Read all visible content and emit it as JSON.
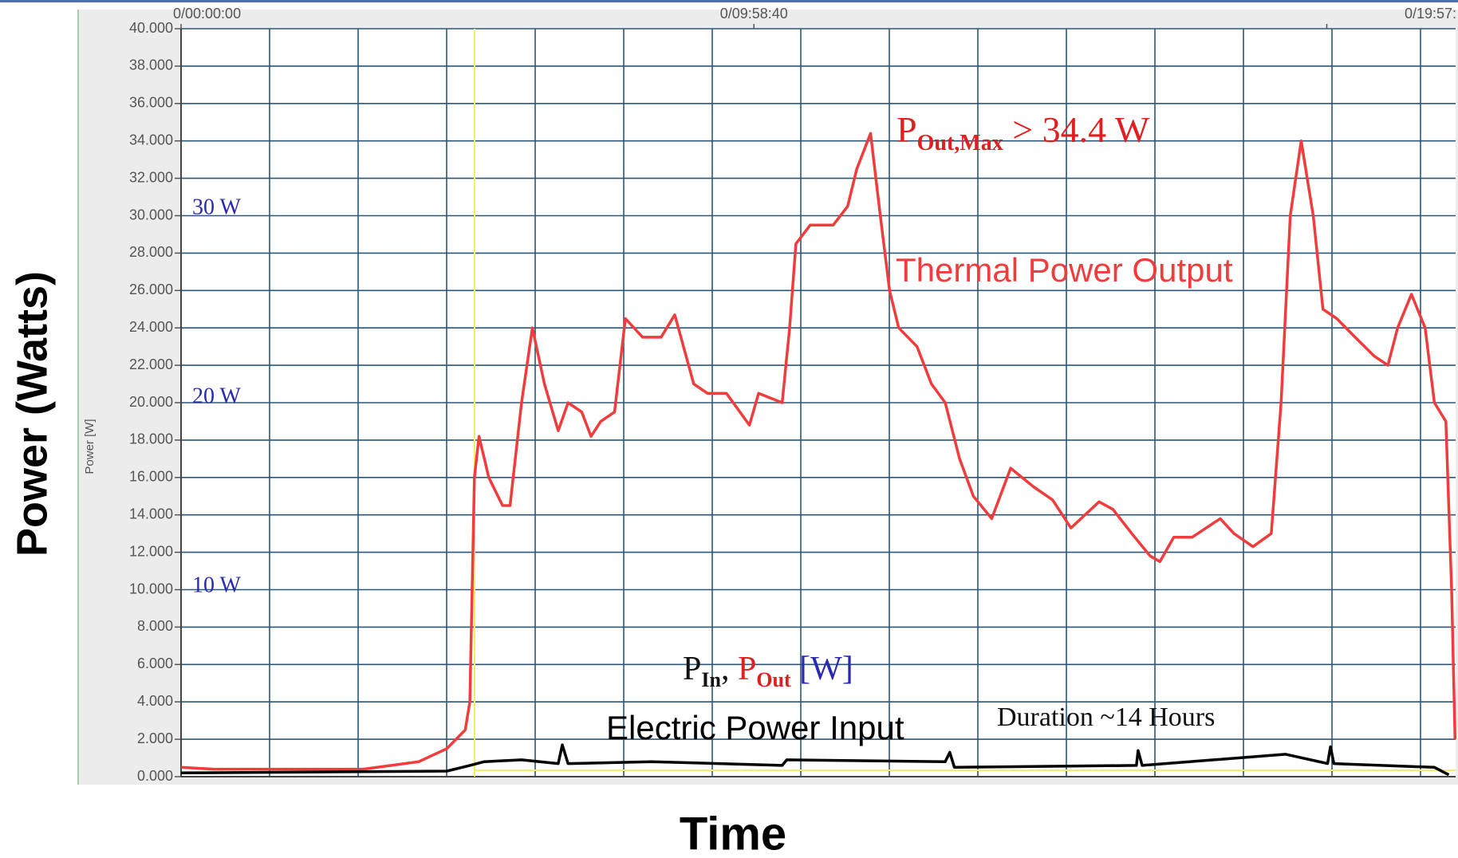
{
  "chart_data": {
    "type": "line",
    "title": "Power (Watts)",
    "x_label": "Time",
    "inner_y_label": "Power [W]",
    "xlim": [
      0,
      22.2
    ],
    "xticks": [
      {
        "value": 0,
        "label": "0/00:00:00"
      },
      {
        "value": 9.978,
        "label": "0/09:58:40"
      },
      {
        "value": 19.956,
        "label": "0/19:57:"
      }
    ],
    "ylim": [
      0,
      40
    ],
    "yticks": [
      {
        "value": 0,
        "label": "0.000"
      },
      {
        "value": 2,
        "label": "2.000"
      },
      {
        "value": 4,
        "label": "4.000"
      },
      {
        "value": 6,
        "label": "6.000"
      },
      {
        "value": 8,
        "label": "8.000"
      },
      {
        "value": 10,
        "label": "10.000"
      },
      {
        "value": 12,
        "label": "12.000"
      },
      {
        "value": 14,
        "label": "14.000"
      },
      {
        "value": 16,
        "label": "16.000"
      },
      {
        "value": 18,
        "label": "18.000"
      },
      {
        "value": 20,
        "label": "20.000"
      },
      {
        "value": 22,
        "label": "22.000"
      },
      {
        "value": 24,
        "label": "24.000"
      },
      {
        "value": 26,
        "label": "26.000"
      },
      {
        "value": 28,
        "label": "28.000"
      },
      {
        "value": 30,
        "label": "30.000"
      },
      {
        "value": 32,
        "label": "32.000"
      },
      {
        "value": 34,
        "label": "34.000"
      },
      {
        "value": 36,
        "label": "36.000"
      },
      {
        "value": 38,
        "label": "38.000"
      },
      {
        "value": 40,
        "label": "40.000"
      }
    ],
    "grid": true,
    "series": [
      {
        "name": "Thermal Power Output",
        "color": "#f03c3c",
        "x": [
          0,
          0.57,
          3.17,
          4.14,
          4.63,
          4.95,
          5.03,
          5.11,
          5.19,
          5.36,
          5.6,
          5.73,
          5.93,
          6.12,
          6.33,
          6.57,
          6.74,
          6.98,
          7.14,
          7.31,
          7.55,
          7.74,
          8.04,
          8.36,
          8.6,
          8.93,
          9.17,
          9.5,
          9.9,
          10.06,
          10.47,
          10.6,
          10.71,
          10.96,
          11.36,
          11.61,
          11.77,
          12.01,
          12.18,
          12.34,
          12.5,
          12.82,
          13.07,
          13.31,
          13.56,
          13.8,
          14.12,
          14.45,
          14.85,
          15.18,
          15.5,
          15.99,
          16.23,
          16.56,
          16.88,
          17.05,
          17.29,
          17.61,
          18.1,
          18.34,
          18.67,
          18.99,
          19.16,
          19.32,
          19.51,
          19.72,
          19.89,
          20.13,
          20.45,
          20.78,
          21.02,
          21.19,
          21.43,
          21.67,
          21.83,
          22.03,
          22.13,
          22.19
        ],
        "values": [
          0.5,
          0.4,
          0.4,
          0.8,
          1.5,
          2.5,
          4,
          16,
          18.2,
          16,
          14.5,
          14.5,
          20,
          24,
          21,
          18.5,
          20,
          19.5,
          18.2,
          19,
          19.5,
          24.5,
          23.5,
          23.5,
          24.7,
          21,
          20.5,
          20.5,
          18.8,
          20.5,
          20,
          24,
          28.5,
          29.5,
          29.5,
          30.5,
          32.5,
          34.4,
          30,
          26,
          24,
          23,
          21,
          20,
          17,
          15,
          13.8,
          16.5,
          15.5,
          14.8,
          13.3,
          14.7,
          14.3,
          13,
          11.8,
          11.5,
          12.8,
          12.8,
          13.8,
          13,
          12.3,
          13,
          20,
          30,
          34,
          30,
          25,
          24.5,
          23.5,
          22.5,
          22,
          24,
          25.8,
          24,
          20,
          19,
          10,
          2
        ]
      },
      {
        "name": "Electric Power Input",
        "color": "#000000",
        "x": [
          0,
          4.63,
          5.03,
          5.28,
          5.93,
          6.57,
          6.64,
          6.74,
          8.2,
          10.47,
          10.55,
          13.31,
          13.39,
          13.47,
          16.64,
          16.67,
          16.74,
          19.24,
          19.97,
          20.02,
          20.08,
          21.83,
          22.08
        ],
        "values": [
          0.2,
          0.3,
          0.6,
          0.8,
          0.9,
          0.7,
          1.7,
          0.7,
          0.8,
          0.6,
          0.9,
          0.8,
          1.3,
          0.5,
          0.6,
          1.4,
          0.6,
          1.2,
          0.7,
          1.6,
          0.7,
          0.5,
          0.1
        ]
      }
    ],
    "annotations": [
      "30 W",
      "20 W",
      "10 W",
      "Duration ~14 Hours"
    ],
    "max_label": {
      "symbol": "P",
      "subscript": "Out,Max",
      "text": " > 34.4 W"
    },
    "unit_label": {
      "in_symbol": "P",
      "in_subscript": "In",
      "separator": ", ",
      "out_symbol": "P",
      "out_subscript": "Out",
      "unit": " [W]"
    }
  }
}
